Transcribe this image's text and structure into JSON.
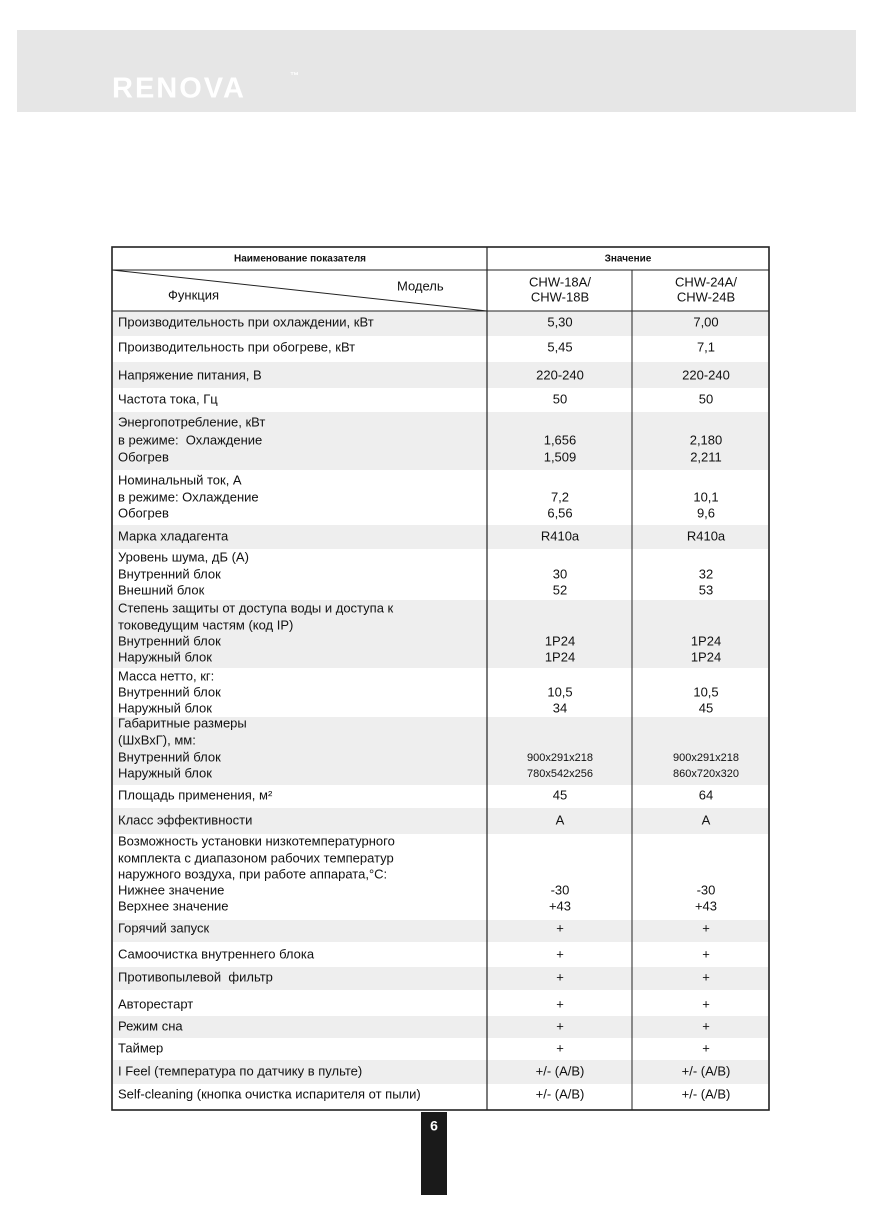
{
  "header": {
    "brand": "RENOVA",
    "trademark": "™"
  },
  "table": {
    "column_headers": [
      "Наименование показателя",
      "Значение"
    ],
    "function_label": "Функция",
    "model_label": "Модель",
    "models": [
      [
        "CHW-18A/",
        "CHW-18B"
      ],
      [
        "CHW-24A/",
        "CHW-24B"
      ]
    ],
    "rows": [
      {
        "label": [
          "Производительность при охлаждении, кВт"
        ],
        "values": [
          [
            "5,30"
          ],
          [
            "7,00"
          ]
        ]
      },
      {
        "label": [
          "Производительность при обогреве, кВт"
        ],
        "values": [
          [
            "5,45"
          ],
          [
            "7,1"
          ]
        ]
      },
      {
        "label": [
          "Напряжение питания, В"
        ],
        "values": [
          [
            "220-240"
          ],
          [
            "220-240"
          ]
        ]
      },
      {
        "label": [
          "Частота тока, Гц"
        ],
        "values": [
          [
            "50"
          ],
          [
            "50"
          ]
        ]
      },
      {
        "label": [
          "Энергопотребление, кВт",
          "в режиме:  Охлаждение",
          "Обогрев"
        ],
        "values": [
          [
            "1,656",
            "1,509"
          ],
          [
            "2,180",
            "2,211"
          ]
        ]
      },
      {
        "label": [
          "Номинальный ток, А",
          "в режиме: Охлаждение",
          "Обогрев"
        ],
        "values": [
          [
            "7,2",
            "6,56"
          ],
          [
            "10,1",
            "9,6"
          ]
        ]
      },
      {
        "label": [
          "Марка хладагента"
        ],
        "values": [
          [
            "R410a"
          ],
          [
            "R410a"
          ]
        ]
      },
      {
        "label": [
          "Уровень шума, дБ (А)",
          "Внутренний блок",
          "Внешний блок"
        ],
        "values": [
          [
            "30",
            "52"
          ],
          [
            "32",
            "53"
          ]
        ]
      },
      {
        "label": [
          "Степень защиты от доступа воды и доступа к",
          "токоведущим частям (код IP)",
          "Внутренний блок",
          "Наружный блок"
        ],
        "values": [
          [
            "1P24",
            "1P24"
          ],
          [
            "1P24",
            "1P24"
          ]
        ]
      },
      {
        "label": [
          "Масса нетто, кг:",
          "Внутренний блок",
          "Наружный блок"
        ],
        "values": [
          [
            "10,5",
            "34"
          ],
          [
            "10,5",
            "45"
          ]
        ]
      },
      {
        "label": [
          "Габаритные размеры",
          "(ШхВхГ), мм:",
          "Внутренний блок",
          "Наружный блок"
        ],
        "values": [
          [
            "900x291x218",
            "780x542x256"
          ],
          [
            "900x291x218",
            "860x720x320"
          ]
        ]
      },
      {
        "label": [
          "Площадь применения, м²"
        ],
        "values": [
          [
            "45"
          ],
          [
            "64"
          ]
        ]
      },
      {
        "label": [
          "Класс эффективности"
        ],
        "values": [
          [
            "A"
          ],
          [
            "A"
          ]
        ]
      },
      {
        "label": [
          "Возможность установки низкотемпературного",
          "комплекта с диапазоном рабочих температур",
          "наружного воздуха, при работе аппарата,°C:",
          "Нижнее значение",
          "Верхнее значение"
        ],
        "values": [
          [
            "-30",
            "+43"
          ],
          [
            "-30",
            "+43"
          ]
        ]
      },
      {
        "label": [
          "Горячий запуск"
        ],
        "values": [
          [
            "+"
          ],
          [
            "+"
          ]
        ]
      },
      {
        "label": [
          "Самоочистка внутреннего блока"
        ],
        "values": [
          [
            "+"
          ],
          [
            "+"
          ]
        ]
      },
      {
        "label": [
          "Противопылевой  фильтр"
        ],
        "values": [
          [
            "+"
          ],
          [
            "+"
          ]
        ]
      },
      {
        "label": [
          "Авторестарт"
        ],
        "values": [
          [
            "+"
          ],
          [
            "+"
          ]
        ]
      },
      {
        "label": [
          "Режим сна"
        ],
        "values": [
          [
            "+"
          ],
          [
            "+"
          ]
        ]
      },
      {
        "label": [
          "Таймер"
        ],
        "values": [
          [
            "+"
          ],
          [
            "+"
          ]
        ]
      },
      {
        "label": [
          "I Feel (температура по датчику в пульте)"
        ],
        "values": [
          [
            "+/- (A/B)"
          ],
          [
            "+/- (A/B)"
          ]
        ]
      },
      {
        "label": [
          "Self-cleaning (кнопка очистка испарителя от пыли)"
        ],
        "values": [
          [
            "+/- (A/B)"
          ],
          [
            "+/- (A/B)"
          ]
        ]
      }
    ]
  },
  "page_number": "6"
}
